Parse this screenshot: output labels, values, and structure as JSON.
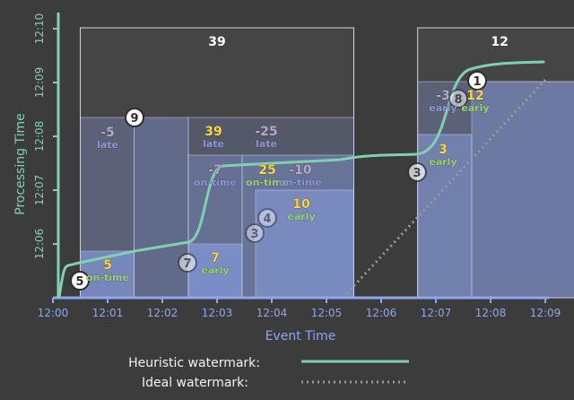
{
  "colors": {
    "background": "#3c3c3d",
    "event_axis": "#8da6ee",
    "processing_axis": "#7fd1b0",
    "heuristic_watermark": "#7fd1b0",
    "ideal_watermark": "#9a9a9a",
    "pane_fill": "#8da6ee",
    "on_time": "#9ad37a",
    "early": "#9ad37a",
    "late": "#8f97d8",
    "value_highlight": "#ffd84a",
    "value_stale": "#b9a9cf"
  },
  "chart_data": {
    "type": "diagram",
    "x_axis": {
      "title": "Event Time",
      "ticks": [
        "12:00",
        "12:01",
        "12:02",
        "12:03",
        "12:04",
        "12:05",
        "12:06",
        "12:07",
        "12:08",
        "12:09"
      ]
    },
    "y_axis": {
      "title": "Processing Time",
      "ticks": [
        "12:06",
        "12:07",
        "12:08",
        "12:09",
        "12:10"
      ]
    },
    "windows": [
      {
        "start": "12:00:30",
        "end": "12:05:30",
        "total": "39"
      },
      {
        "start": "12:06:40",
        "end": "12:09:40",
        "total": "12"
      }
    ],
    "pane_labels": [
      {
        "value": "5",
        "tag": "on-time",
        "current": true
      },
      {
        "value": "-5",
        "tag": "late",
        "current": false
      },
      {
        "value": "39",
        "tag": "late",
        "current": true
      },
      {
        "value": "-25",
        "tag": "late",
        "current": false
      },
      {
        "value": "7",
        "tag": "early",
        "current": true
      },
      {
        "value": "-7",
        "tag": "on-time",
        "current": false
      },
      {
        "value": "25",
        "tag": "on-time",
        "current": true
      },
      {
        "value": "-10",
        "tag": "on-time",
        "current": false
      },
      {
        "value": "10",
        "tag": "early",
        "current": true
      },
      {
        "value": "3",
        "tag": "early",
        "current": true
      },
      {
        "value": "-3",
        "tag": "early",
        "current": false
      },
      {
        "value": "12",
        "tag": "early",
        "current": true
      }
    ],
    "data_points": [
      {
        "value": "5",
        "event": "12:00:30",
        "processing": "12:05:40"
      },
      {
        "value": "9",
        "event": "12:01:30",
        "processing": "12:08:20"
      },
      {
        "value": "7",
        "event": "12:02:30",
        "processing": "12:05:40"
      },
      {
        "value": "3",
        "event": "12:03:40",
        "processing": "12:06:13"
      },
      {
        "value": "4",
        "event": "12:03:55",
        "processing": "12:06:30"
      },
      {
        "value": "3",
        "event": "12:06:40",
        "processing": "12:07:20"
      },
      {
        "value": "8",
        "event": "12:07:25",
        "processing": "12:08:42"
      },
      {
        "value": "1",
        "event": "12:07:55",
        "processing": "12:09:00"
      }
    ],
    "legend": [
      {
        "label": "Heuristic watermark:",
        "style": "solid"
      },
      {
        "label": "Ideal watermark:",
        "style": "dotted"
      }
    ]
  }
}
